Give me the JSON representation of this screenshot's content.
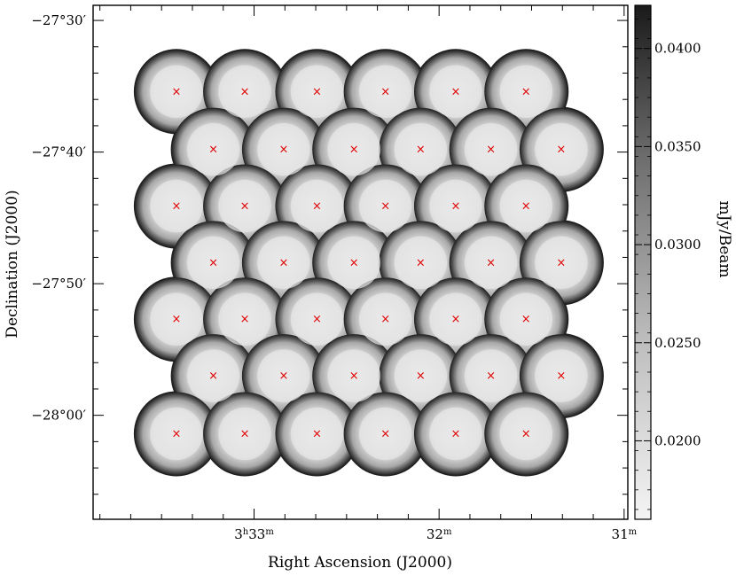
{
  "chart_data": {
    "type": "heatmap",
    "description_kind": "mosaic sensitivity map",
    "xlabel": "Right Ascension (J2000)",
    "ylabel": "Declination (J2000)",
    "x_ticks": [
      {
        "label_main": "3",
        "label_sup1": "h",
        "label_mid": "33",
        "label_sup2": "m",
        "ra_min": 33
      },
      {
        "label_main": "32",
        "label_sup2": "m",
        "ra_min": 32
      },
      {
        "label_main": "31",
        "label_sup2": "m",
        "ra_min": 31
      }
    ],
    "y_ticks": [
      {
        "label": "−27°30′",
        "dec_arcmin": -30
      },
      {
        "label": "−27°40′",
        "dec_arcmin": -40
      },
      {
        "label": "−27°50′",
        "dec_arcmin": -50
      },
      {
        "label": "−28°00′",
        "dec_arcmin": -60
      }
    ],
    "ra_range_min": [
      33.87,
      30.98
    ],
    "dec_range_arcmin": [
      -28.85,
      -67.9
    ],
    "colorbar": {
      "label": "mJy/Beam",
      "range": [
        0.016,
        0.0422
      ],
      "ticks": [
        {
          "label": "0.0400",
          "value": 0.04
        },
        {
          "label": "0.0350",
          "value": 0.035
        },
        {
          "label": "0.0300",
          "value": 0.03
        },
        {
          "label": "0.0250",
          "value": 0.025
        },
        {
          "label": "0.0200",
          "value": 0.02
        }
      ],
      "colormap": "grayscale, light = low, dark = high"
    },
    "pointings": {
      "marker": "×",
      "marker_color": "#e00000",
      "rows": [
        {
          "dec_arcmin": -35.4,
          "ra_min": [
            33.42,
            33.05,
            32.66,
            32.29,
            31.91,
            31.53
          ]
        },
        {
          "dec_arcmin": -39.8,
          "ra_min": [
            33.22,
            32.84,
            32.46,
            32.1,
            31.72,
            31.34
          ]
        },
        {
          "dec_arcmin": -44.1,
          "ra_min": [
            33.42,
            33.05,
            32.66,
            32.29,
            31.91,
            31.53
          ]
        },
        {
          "dec_arcmin": -48.4,
          "ra_min": [
            33.22,
            32.84,
            32.46,
            32.1,
            31.72,
            31.34
          ]
        },
        {
          "dec_arcmin": -52.7,
          "ra_min": [
            33.42,
            33.05,
            32.66,
            32.29,
            31.91,
            31.53
          ]
        },
        {
          "dec_arcmin": -57.0,
          "ra_min": [
            33.22,
            32.84,
            32.46,
            32.1,
            31.72,
            31.34
          ]
        },
        {
          "dec_arcmin": -61.4,
          "ra_min": [
            33.42,
            33.05,
            32.66,
            32.29,
            31.91,
            31.53
          ]
        }
      ]
    },
    "grid": false,
    "legend": "none"
  }
}
